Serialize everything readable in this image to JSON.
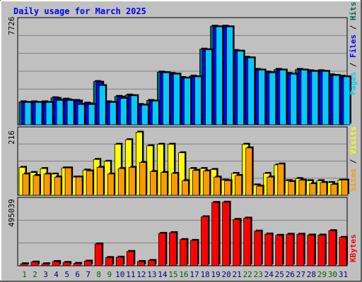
{
  "chart_data": {
    "type": "bar",
    "title": "Daily usage for March 2025",
    "categories": [
      "1",
      "2",
      "3",
      "4",
      "5",
      "6",
      "7",
      "8",
      "9",
      "10",
      "11",
      "12",
      "13",
      "14",
      "15",
      "16",
      "17",
      "18",
      "19",
      "20",
      "21",
      "22",
      "23",
      "24",
      "25",
      "26",
      "27",
      "28",
      "29",
      "30",
      "31"
    ],
    "weekend_days": [
      "1",
      "2",
      "8",
      "9",
      "15",
      "16",
      "22",
      "23",
      "29",
      "30"
    ],
    "panels": [
      {
        "id": "hits-files-pages",
        "ymax_label": "7726",
        "ylim": [
          0,
          7726
        ],
        "legend": [
          "Pages",
          "Files",
          "Hits"
        ],
        "series": [
          {
            "name": "Hits",
            "color": "#006666",
            "values": [
              1700,
              1700,
              1700,
              2000,
              1900,
              1800,
              1600,
              3200,
              1700,
              2100,
              2200,
              1500,
              1800,
              3900,
              3800,
              3500,
              3600,
              5600,
              7300,
              7300,
              5500,
              5000,
              4100,
              3900,
              4100,
              3800,
              4100,
              4000,
              4000,
              3700,
              3600
            ]
          },
          {
            "name": "Files",
            "color": "#0000ff",
            "values": [
              1650,
              1650,
              1650,
              1950,
              1850,
              1750,
              1550,
              3150,
              1650,
              2050,
              2150,
              1450,
              1750,
              3850,
              3750,
              3450,
              3550,
              5550,
              7250,
              7250,
              5450,
              4950,
              4050,
              3850,
              4050,
              3750,
              4050,
              3950,
              3950,
              3650,
              3550
            ]
          },
          {
            "name": "Pages",
            "color": "#00ccff",
            "values": [
              1650,
              1650,
              1650,
              1800,
              1800,
              1500,
              1500,
              2900,
              1650,
              1950,
              2150,
              1450,
              1750,
              3850,
              3750,
              3450,
              3550,
              5550,
              7250,
              7250,
              5450,
              4950,
              4050,
              3850,
              4050,
              3750,
              4050,
              3950,
              3950,
              3650,
              3550
            ]
          }
        ]
      },
      {
        "id": "visits-sites",
        "ymax_label": "216",
        "ylim": [
          0,
          216
        ],
        "legend": [
          "Sites",
          "Visits"
        ],
        "series": [
          {
            "name": "Visits",
            "color": "#ffff00",
            "values": [
              92,
              75,
              88,
              70,
              90,
              60,
              83,
              118,
              112,
              168,
              183,
              208,
              163,
              168,
              168,
              140,
              88,
              88,
              85,
              50,
              72,
              168,
              34,
              72,
              100,
              48,
              55,
              48,
              48,
              42,
              50
            ]
          },
          {
            "name": "Sites",
            "color": "#ff9900",
            "values": [
              70,
              65,
              70,
              60,
              90,
              60,
              80,
              92,
              70,
              88,
              92,
              108,
              78,
              75,
              72,
              48,
              82,
              80,
              60,
              48,
              65,
              156,
              30,
              60,
              103,
              45,
              50,
              38,
              42,
              36,
              50
            ]
          }
        ]
      },
      {
        "id": "kbytes",
        "ymax_label": "495039",
        "ylim": [
          0,
          495039
        ],
        "legend": [
          "KBytes"
        ],
        "series": [
          {
            "name": "KBytes",
            "color": "#ff0000",
            "values": [
              15000,
              28000,
              15000,
              32000,
              25000,
              18000,
              35000,
              165000,
              62000,
              65000,
              108000,
              32000,
              40000,
              245000,
              250000,
              198000,
              192000,
              370000,
              478000,
              480000,
              350000,
              360000,
              262000,
              240000,
              230000,
              238000,
              238000,
              232000,
              232000,
              265000,
              215000
            ]
          }
        ]
      }
    ]
  },
  "colors": {
    "background": "#c0c0c0",
    "grid": "#808080",
    "title": "#0000ff",
    "weekday_label": "#000080",
    "weekend_label": "#006400",
    "bar_shadow": "#000000"
  }
}
